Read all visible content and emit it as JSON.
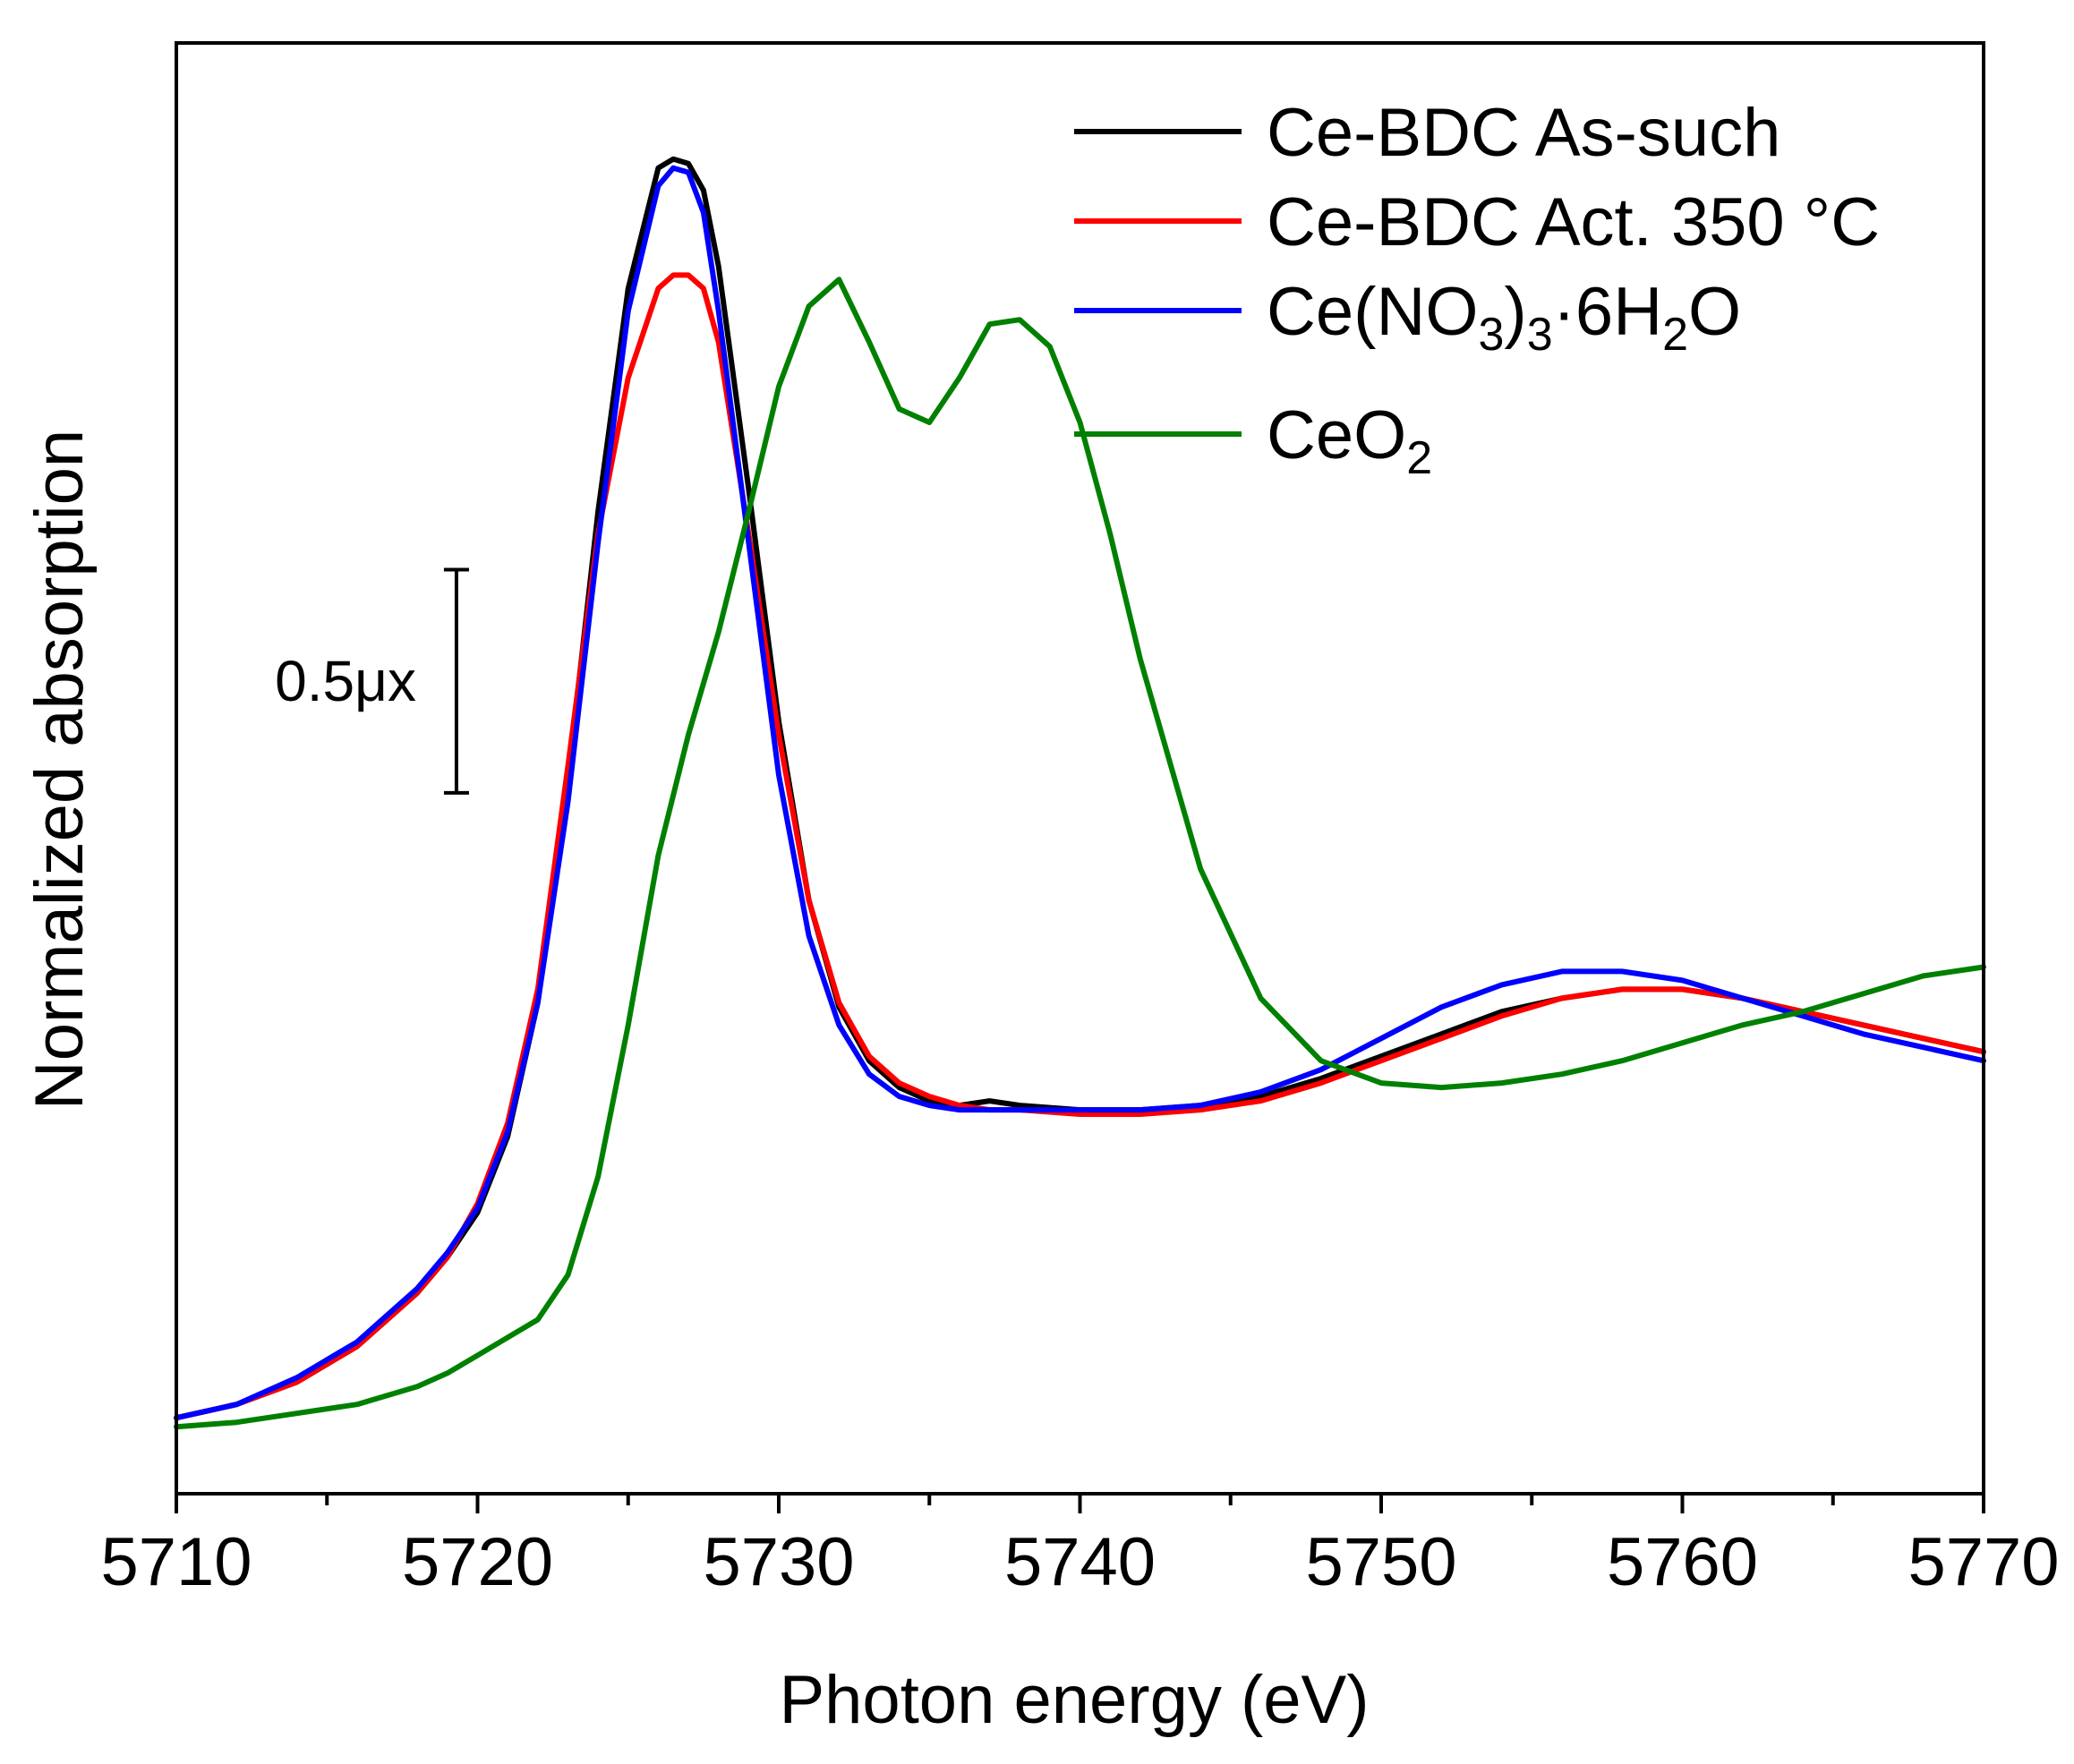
{
  "chart_data": {
    "type": "line",
    "title": "",
    "xlabel": "Photon energy (eV)",
    "ylabel": "Normalized absorption",
    "xlim": [
      5710,
      5770
    ],
    "ylim": [
      -0.15,
      3.1
    ],
    "xticks": [
      "5710",
      "5720",
      "5730",
      "5740",
      "5750",
      "5760",
      "5770"
    ],
    "yticks_shown": false,
    "legend_position": "top-right",
    "scale_bar": {
      "label": "0.5μx",
      "value": 0.5
    },
    "series": [
      {
        "name": "Ce-BDC As-such",
        "legend_parts": [
          {
            "t": "Ce-BDC As-such"
          }
        ],
        "color": "#000000",
        "x": [
          5710,
          5712,
          5714,
          5716,
          5718,
          5719,
          5720,
          5721,
          5722,
          5723,
          5724,
          5725,
          5726,
          5726.5,
          5727,
          5727.5,
          5728,
          5729,
          5730,
          5731,
          5732,
          5733,
          5734,
          5735,
          5736,
          5737,
          5738,
          5740,
          5742,
          5744,
          5746,
          5748,
          5750,
          5752,
          5754,
          5756,
          5758,
          5760,
          5762,
          5764,
          5766,
          5768,
          5770
        ],
        "y": [
          0.02,
          0.05,
          0.1,
          0.18,
          0.3,
          0.38,
          0.48,
          0.65,
          0.95,
          1.45,
          2.05,
          2.55,
          2.82,
          2.84,
          2.83,
          2.77,
          2.6,
          2.1,
          1.58,
          1.18,
          0.94,
          0.82,
          0.76,
          0.73,
          0.72,
          0.73,
          0.72,
          0.71,
          0.71,
          0.72,
          0.74,
          0.78,
          0.83,
          0.88,
          0.93,
          0.96,
          0.98,
          0.98,
          0.96,
          0.93,
          0.9,
          0.87,
          0.84
        ]
      },
      {
        "name": "Ce-BDC Act. 350 °C",
        "legend_parts": [
          {
            "t": "Ce-BDC Act. 350 °C"
          }
        ],
        "color": "#ff0000",
        "x": [
          5710,
          5712,
          5714,
          5716,
          5718,
          5719,
          5720,
          5721,
          5722,
          5723,
          5724,
          5725,
          5726,
          5726.5,
          5727,
          5727.5,
          5728,
          5729,
          5730,
          5731,
          5732,
          5733,
          5734,
          5735,
          5736,
          5737,
          5738,
          5740,
          5742,
          5744,
          5746,
          5748,
          5750,
          5752,
          5754,
          5756,
          5758,
          5760,
          5762,
          5764,
          5766,
          5768,
          5770
        ],
        "y": [
          0.02,
          0.05,
          0.1,
          0.18,
          0.3,
          0.38,
          0.5,
          0.68,
          0.98,
          1.48,
          2.0,
          2.35,
          2.55,
          2.58,
          2.58,
          2.55,
          2.43,
          2.0,
          1.55,
          1.18,
          0.95,
          0.83,
          0.77,
          0.74,
          0.72,
          0.71,
          0.71,
          0.7,
          0.7,
          0.71,
          0.73,
          0.77,
          0.82,
          0.87,
          0.92,
          0.96,
          0.98,
          0.98,
          0.96,
          0.93,
          0.9,
          0.87,
          0.84
        ]
      },
      {
        "name": "Ce(NO3)3·6H2O",
        "legend_parts": [
          {
            "t": "Ce(NO"
          },
          {
            "t": "3",
            "sub": true
          },
          {
            "t": ")"
          },
          {
            "t": "3",
            "sub": true
          },
          {
            "t": "·6H"
          },
          {
            "t": "2",
            "sub": true
          },
          {
            "t": "O"
          }
        ],
        "color": "#0000ff",
        "x": [
          5710,
          5712,
          5714,
          5716,
          5718,
          5719,
          5720,
          5721,
          5722,
          5723,
          5724,
          5725,
          5726,
          5726.5,
          5727,
          5727.5,
          5728,
          5729,
          5730,
          5731,
          5732,
          5733,
          5734,
          5735,
          5736,
          5737,
          5738,
          5740,
          5742,
          5744,
          5746,
          5748,
          5750,
          5752,
          5754,
          5756,
          5758,
          5760,
          5762,
          5764,
          5766,
          5768,
          5770
        ],
        "y": [
          0.02,
          0.05,
          0.11,
          0.19,
          0.31,
          0.39,
          0.49,
          0.66,
          0.95,
          1.4,
          1.98,
          2.5,
          2.78,
          2.82,
          2.81,
          2.72,
          2.5,
          1.98,
          1.46,
          1.1,
          0.9,
          0.79,
          0.74,
          0.72,
          0.71,
          0.71,
          0.71,
          0.71,
          0.71,
          0.72,
          0.75,
          0.8,
          0.87,
          0.94,
          0.99,
          1.02,
          1.02,
          1.0,
          0.96,
          0.92,
          0.88,
          0.85,
          0.82
        ]
      },
      {
        "name": "CeO2",
        "legend_parts": [
          {
            "t": "CeO"
          },
          {
            "t": "2",
            "sub": true
          }
        ],
        "color": "#008000",
        "x": [
          5710,
          5712,
          5714,
          5716,
          5718,
          5719,
          5720,
          5721,
          5722,
          5723,
          5724,
          5725,
          5726,
          5727,
          5728,
          5729,
          5730,
          5731,
          5732,
          5733,
          5734,
          5735,
          5736,
          5737,
          5738,
          5739,
          5740,
          5741,
          5742,
          5744,
          5746,
          5748,
          5750,
          5752,
          5754,
          5756,
          5758,
          5760,
          5762,
          5764,
          5766,
          5768,
          5770
        ],
        "y": [
          0.0,
          0.01,
          0.03,
          0.05,
          0.09,
          0.12,
          0.16,
          0.2,
          0.24,
          0.34,
          0.56,
          0.9,
          1.28,
          1.55,
          1.78,
          2.05,
          2.33,
          2.51,
          2.57,
          2.43,
          2.28,
          2.25,
          2.35,
          2.47,
          2.48,
          2.42,
          2.25,
          2.0,
          1.72,
          1.25,
          0.96,
          0.82,
          0.77,
          0.76,
          0.77,
          0.79,
          0.82,
          0.86,
          0.9,
          0.93,
          0.97,
          1.01,
          1.03
        ]
      }
    ]
  }
}
